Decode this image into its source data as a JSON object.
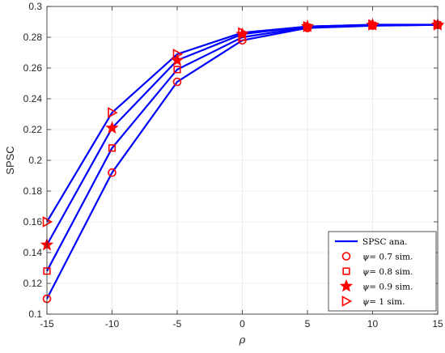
{
  "chart_data": {
    "type": "line",
    "xlabel": "ρ",
    "ylabel": "SPSC",
    "xlim": [
      -15,
      15
    ],
    "ylim": [
      0.1,
      0.3
    ],
    "xticks": [
      "-15",
      "-10",
      "-5",
      "0",
      "5",
      "10",
      "15"
    ],
    "yticks": [
      "0.1",
      "0.12",
      "0.14",
      "0.16",
      "0.18",
      "0.2",
      "0.22",
      "0.24",
      "0.26",
      "0.28",
      "0.3"
    ],
    "grid": true,
    "legend_position": "bottom-right",
    "colors": {
      "line": "#0000ff",
      "marker": "#ff0000",
      "grid": "#e6e6e6",
      "axis": "#262626"
    },
    "x": [
      -15,
      -10,
      -5,
      0,
      5,
      10,
      15
    ],
    "series": [
      {
        "psi": "0.7",
        "marker": "circle",
        "analytical": [
          0.11,
          0.192,
          0.251,
          0.278,
          0.286,
          0.2875,
          0.288
        ],
        "simulated": [
          0.11,
          0.192,
          0.251,
          0.278,
          0.286,
          0.2875,
          0.288
        ]
      },
      {
        "psi": "0.8",
        "marker": "square",
        "analytical": [
          0.128,
          0.208,
          0.259,
          0.28,
          0.2865,
          0.2877,
          0.288
        ],
        "simulated": [
          0.128,
          0.208,
          0.259,
          0.28,
          0.2865,
          0.2877,
          0.288
        ]
      },
      {
        "psi": "0.9",
        "marker": "star",
        "analytical": [
          0.145,
          0.221,
          0.265,
          0.282,
          0.287,
          0.288,
          0.288
        ],
        "simulated": [
          0.145,
          0.221,
          0.265,
          0.282,
          0.287,
          0.288,
          0.288
        ]
      },
      {
        "psi": "1",
        "marker": "triangle-right",
        "analytical": [
          0.16,
          0.231,
          0.269,
          0.283,
          0.287,
          0.2882,
          0.2882
        ],
        "simulated": [
          0.16,
          0.231,
          0.269,
          0.283,
          0.287,
          0.2882,
          0.2882
        ]
      }
    ],
    "legend": [
      {
        "label": "SPSC ana.",
        "marker": "line"
      },
      {
        "label": "ψ= 0.7 sim.",
        "math": "ψ",
        "rest": "= 0.7 sim.",
        "marker": "circle"
      },
      {
        "label": "ψ= 0.8 sim.",
        "math": "ψ",
        "rest": "= 0.8 sim.",
        "marker": "square"
      },
      {
        "label": "ψ= 0.9 sim.",
        "math": "ψ",
        "rest": "= 0.9 sim.",
        "marker": "star"
      },
      {
        "label": "ψ= 1 sim.",
        "math": "ψ",
        "rest": "= 1 sim.",
        "marker": "triangle-right"
      }
    ]
  }
}
